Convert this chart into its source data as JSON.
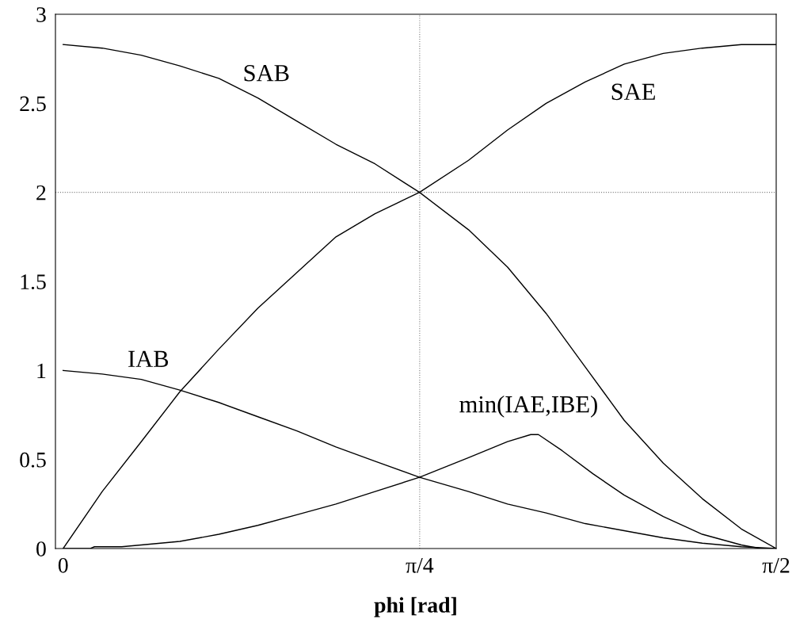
{
  "chart_data": {
    "type": "line",
    "xlabel": "phi [rad]",
    "x": [
      0,
      0.086,
      0.172,
      0.257,
      0.343,
      0.429,
      0.515,
      0.601,
      0.687,
      0.785,
      0.893,
      0.979,
      1.064,
      1.15,
      1.236,
      1.322,
      1.408,
      1.494,
      1.5708
    ],
    "series": [
      {
        "color": "#000000",
        "values": [
          2.83,
          2.81,
          2.77,
          2.71,
          2.64,
          2.53,
          2.4,
          2.27,
          2.16,
          2.0,
          1.79,
          1.58,
          1.32,
          1.02,
          0.72,
          0.48,
          0.28,
          0.11,
          0
        ]
      },
      {
        "color": "#000000",
        "values": [
          0,
          0.32,
          0.6,
          0.88,
          1.12,
          1.35,
          1.55,
          1.75,
          1.88,
          2.0,
          2.18,
          2.35,
          2.5,
          2.62,
          2.72,
          2.78,
          2.81,
          2.83,
          2.83
        ]
      },
      {
        "color": "#000000",
        "values": [
          1.0,
          0.98,
          0.95,
          0.89,
          0.82,
          0.74,
          0.66,
          0.57,
          0.49,
          0.4,
          0.32,
          0.25,
          0.2,
          0.14,
          0.1,
          0.06,
          0.03,
          0.01,
          0
        ]
      },
      {
        "color": "#000000",
        "x": [
          0,
          0.06,
          0.069,
          0.129,
          0.172,
          0.257,
          0.343,
          0.429,
          0.515,
          0.601,
          0.687,
          0.785,
          0.893,
          0.979,
          1.03,
          1.047,
          1.099,
          1.167,
          1.236,
          1.322,
          1.408,
          1.494,
          1.536,
          1.5708
        ],
        "values": [
          0,
          0,
          0.01,
          0.01,
          0.02,
          0.04,
          0.08,
          0.13,
          0.19,
          0.25,
          0.32,
          0.4,
          0.51,
          0.6,
          0.64,
          0.64,
          0.55,
          0.42,
          0.3,
          0.18,
          0.08,
          0.02,
          0,
          0
        ]
      }
    ],
    "annotations": [
      "SAB",
      "SAE",
      "IAB",
      "min(IAE,IBE)"
    ],
    "ref_lines": [
      {
        "axis": "x",
        "value": 0.7854,
        "color": "#808080",
        "line_style": "dotted"
      },
      {
        "axis": "y",
        "value": 2,
        "color": "#808080",
        "line_style": "dotted"
      }
    ],
    "xlim": [
      -0.017,
      1.5708
    ],
    "xticks": [
      0,
      {
        "value": 0.7854,
        "label": "π/4"
      },
      {
        "value": 1.5708,
        "label": "π/2"
      }
    ],
    "ylim": [
      0,
      3
    ],
    "yticks": [
      0,
      0.5,
      1,
      1.5,
      2,
      2.5,
      3
    ],
    "grid": false,
    "legend": false,
    "marker": "none",
    "line_style": "solid"
  }
}
